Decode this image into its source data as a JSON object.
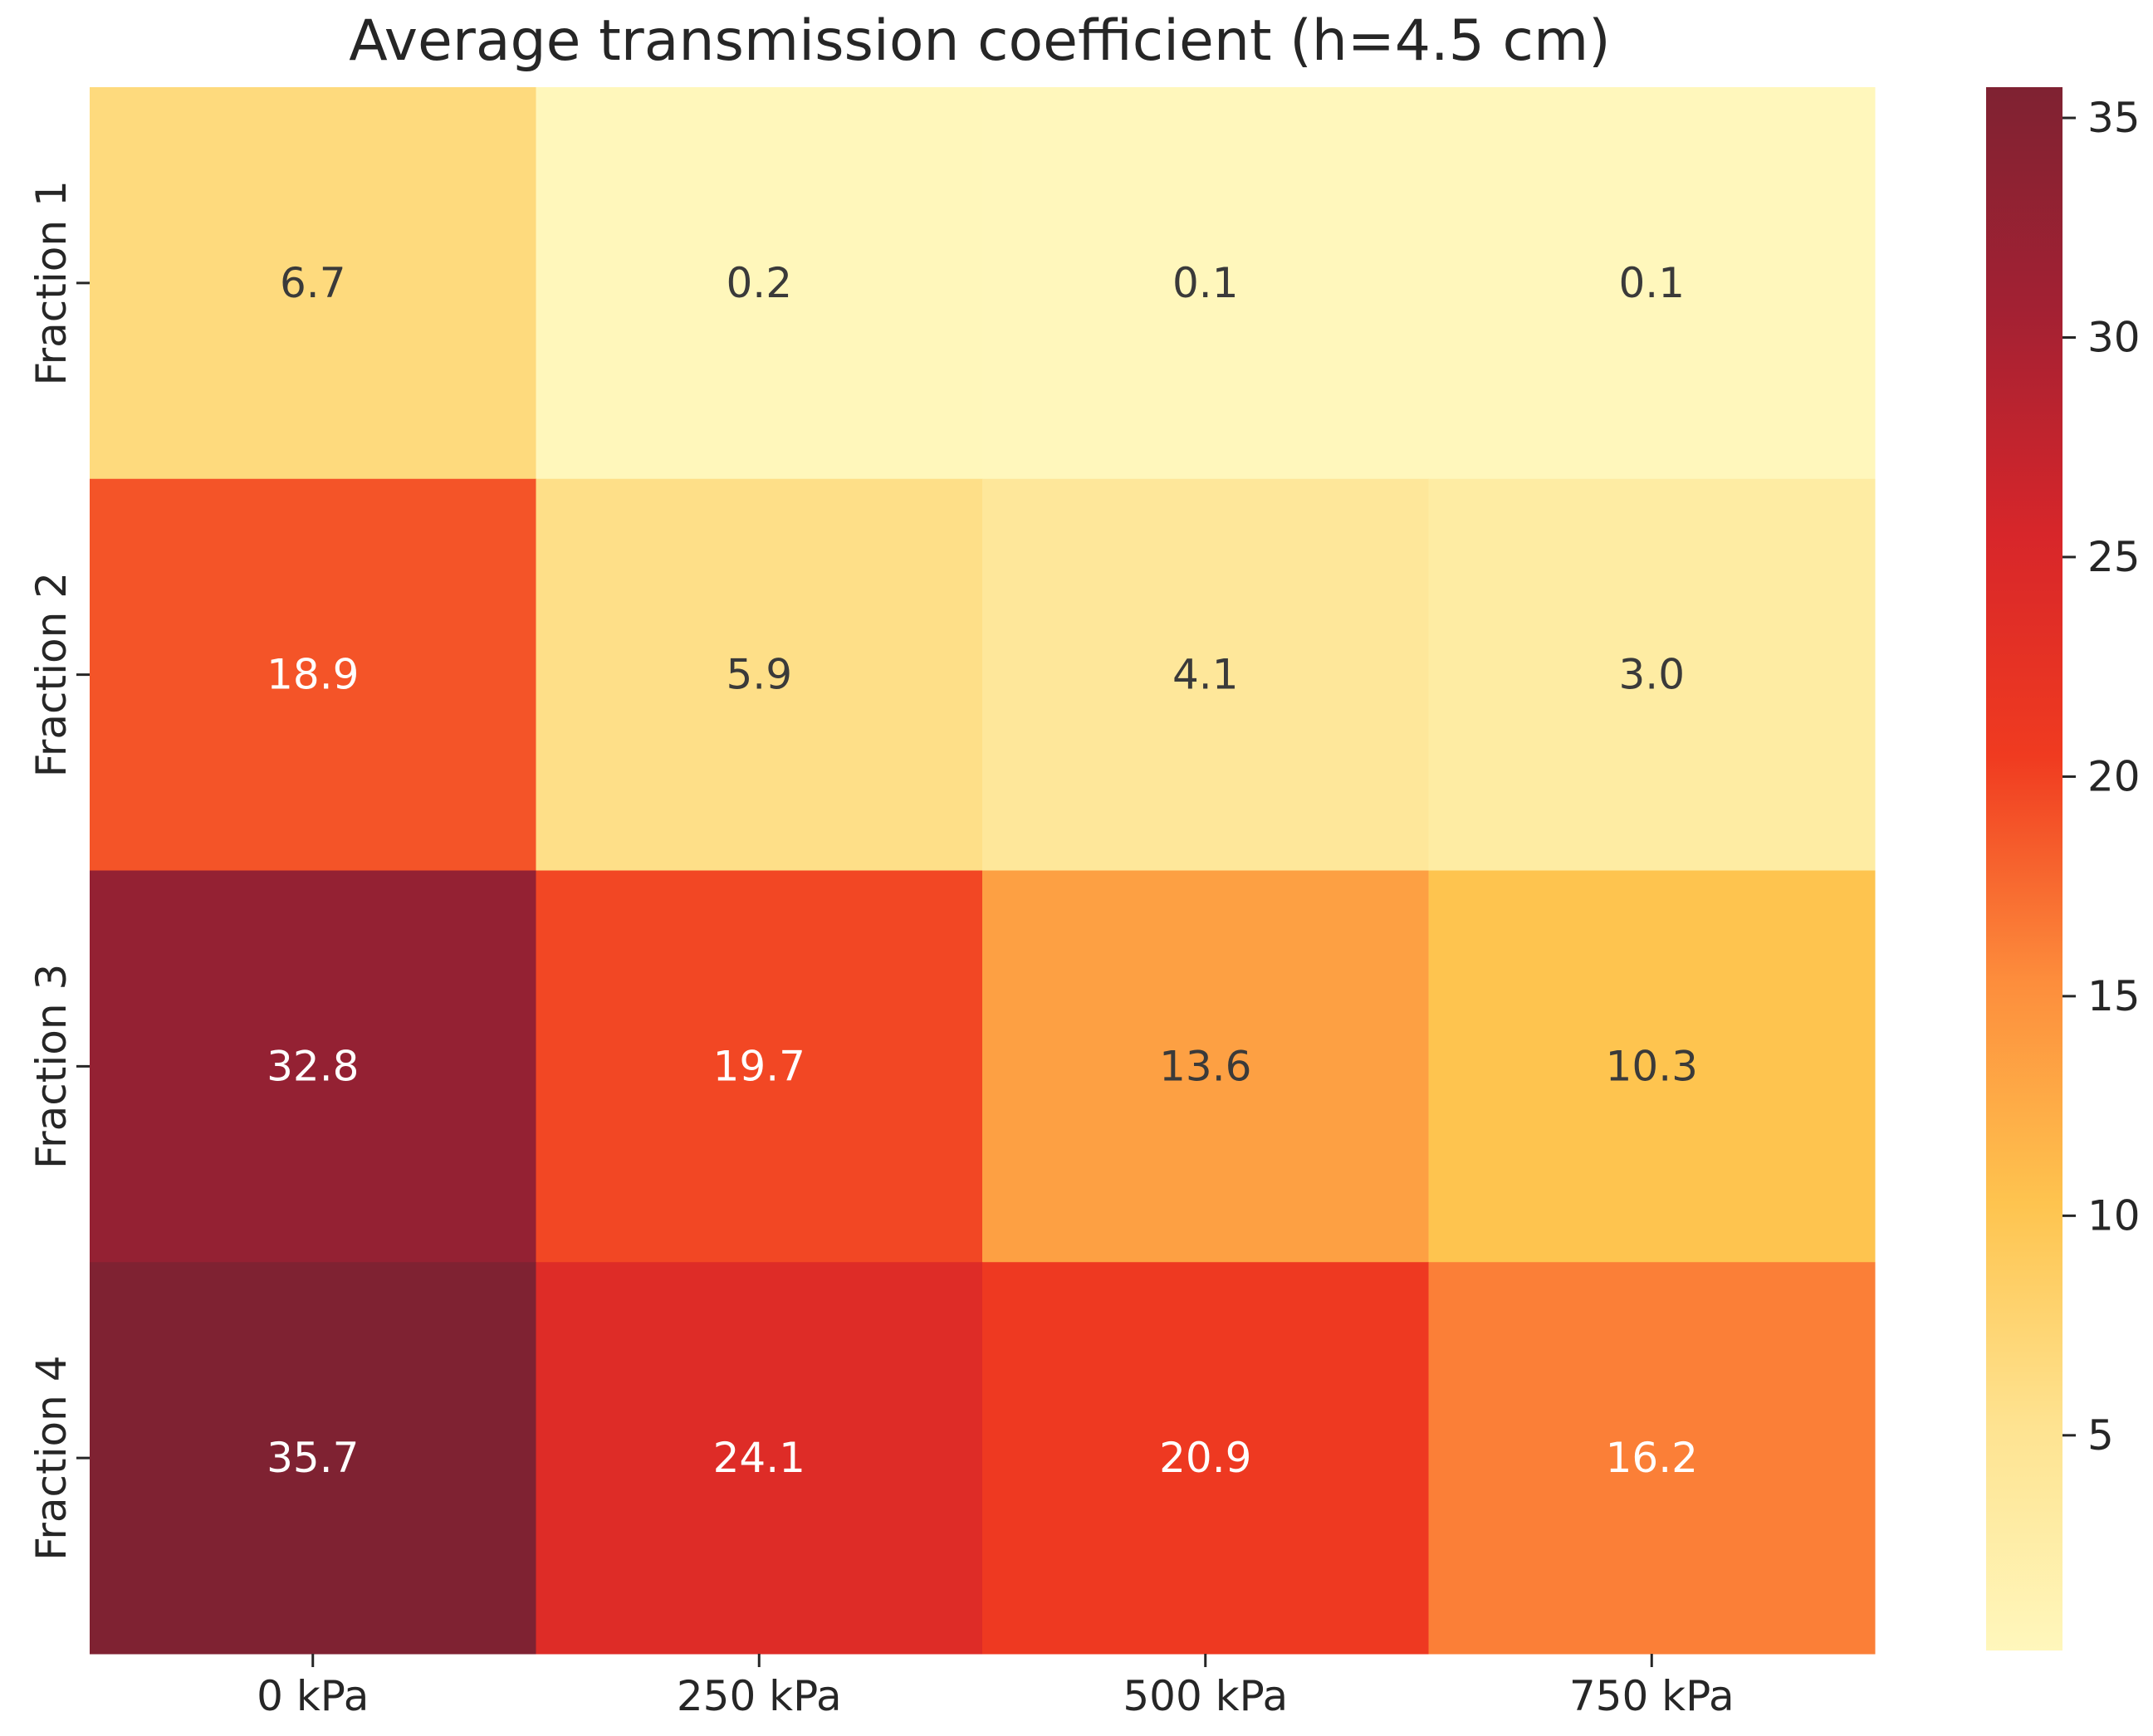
{
  "chart_data": {
    "type": "heatmap",
    "title": "Average transmission coefficient (h=4.5 cm)",
    "xlabel": "",
    "ylabel": "",
    "x_categories": [
      "0 kPa",
      "250 kPa",
      "500 kPa",
      "750 kPa"
    ],
    "y_categories": [
      "Fraction 1",
      "Fraction 2",
      "Fraction 3",
      "Fraction 4"
    ],
    "values": [
      [
        6.7,
        0.2,
        0.1,
        0.1
      ],
      [
        18.9,
        5.9,
        4.1,
        3.0
      ],
      [
        32.8,
        19.7,
        13.6,
        10.3
      ],
      [
        35.7,
        24.1,
        20.9,
        16.2
      ]
    ],
    "value_labels": [
      [
        "6.7",
        "0.2",
        "0.1",
        "0.1"
      ],
      [
        "18.9",
        "5.9",
        "4.1",
        "3.0"
      ],
      [
        "32.8",
        "19.7",
        "13.6",
        "10.3"
      ],
      [
        "35.7",
        "24.1",
        "20.9",
        "16.2"
      ]
    ],
    "colormap": "YlOrRd",
    "color_stops": [
      "#fff7bc",
      "#fee391",
      "#fec44f",
      "#fd8d3c",
      "#f03b20",
      "#d7262a",
      "#a32133",
      "#7f2232"
    ],
    "dark_text_color": "#3a3a3a",
    "light_text_color": "#ffffff",
    "colorbar": {
      "vmin": 0.1,
      "vmax": 35.7,
      "ticks": [
        5,
        10,
        15,
        20,
        25,
        30,
        35
      ],
      "tick_labels": [
        "5",
        "10",
        "15",
        "20",
        "25",
        "30",
        "35"
      ]
    }
  }
}
